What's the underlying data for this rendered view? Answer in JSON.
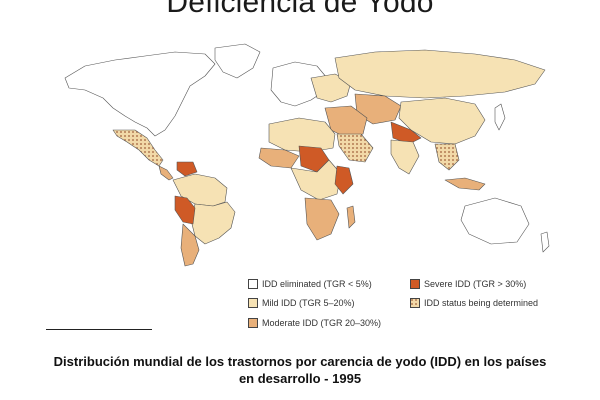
{
  "title": "Deficiencia de Yodo",
  "legend": [
    {
      "label": "IDD eliminated (TGR < 5%)",
      "color": "#ffffff",
      "pattern": "none"
    },
    {
      "label": "Mild IDD (TGR 5–20%)",
      "color": "#f6e2b4",
      "pattern": "none"
    },
    {
      "label": "Moderate IDD (TGR 20–30%)",
      "color": "#e8b07a",
      "pattern": "none"
    },
    {
      "label": "Severe IDD (TGR > 30%)",
      "color": "#cf5a26",
      "pattern": "none"
    },
    {
      "label": "IDD status being determined",
      "color": "#e8b07a",
      "pattern": "dots"
    }
  ],
  "caption": {
    "line1": "Distribución mundial de los trastornos por carencia de yodo (IDD) en los países",
    "line2": "en desarrollo - 1995"
  }
}
